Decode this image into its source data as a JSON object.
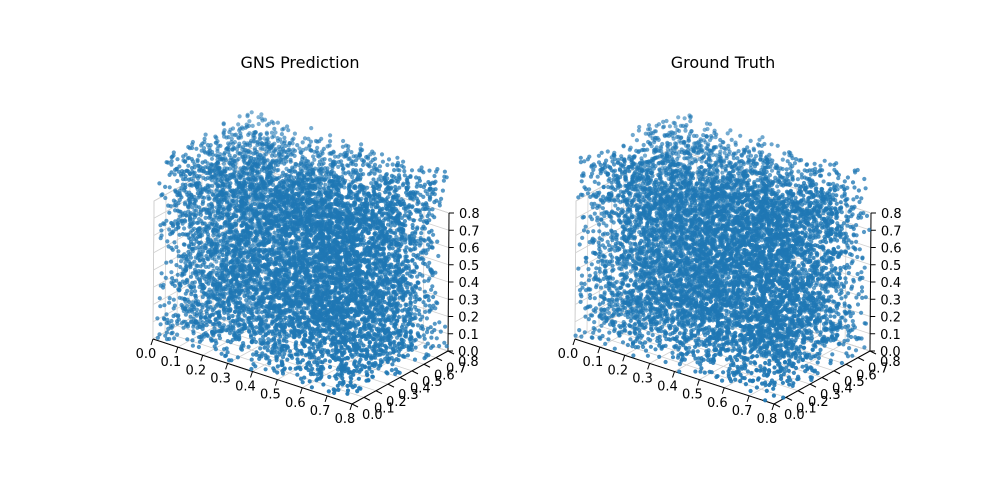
{
  "figure": {
    "background": "#ffffff",
    "point_color": "#1f77b4"
  },
  "chart_data": [
    {
      "type": "scatter",
      "subtype": "3d",
      "title": "GNS Prediction",
      "xlabel": "",
      "ylabel": "",
      "zlabel": "",
      "x_ticks": [
        "0.0",
        "0.1",
        "0.2",
        "0.3",
        "0.4",
        "0.5",
        "0.6",
        "0.7",
        "0.8"
      ],
      "y_ticks": [
        "0.0",
        "0.1",
        "0.2",
        "0.3",
        "0.4",
        "0.5",
        "0.6",
        "0.7",
        "0.8"
      ],
      "z_ticks": [
        "0.0",
        "0.1",
        "0.2",
        "0.3",
        "0.4",
        "0.5",
        "0.6",
        "0.7",
        "0.8"
      ],
      "xlim": [
        0,
        0.8
      ],
      "ylim": [
        0,
        0.8
      ],
      "zlim": [
        0,
        0.8
      ],
      "series": [
        {
          "distribution": "uniform",
          "x_range": [
            0,
            0.8
          ],
          "y_range": [
            0,
            0.8
          ],
          "z_range": [
            0,
            1.05
          ],
          "approx_points": 8000,
          "color": "#1f77b4",
          "seed": 11
        }
      ]
    },
    {
      "type": "scatter",
      "subtype": "3d",
      "title": "Ground Truth",
      "xlabel": "",
      "ylabel": "",
      "zlabel": "",
      "x_ticks": [
        "0.0",
        "0.1",
        "0.2",
        "0.3",
        "0.4",
        "0.5",
        "0.6",
        "0.7",
        "0.8"
      ],
      "y_ticks": [
        "0.0",
        "0.1",
        "0.2",
        "0.3",
        "0.4",
        "0.5",
        "0.6",
        "0.7",
        "0.8"
      ],
      "z_ticks": [
        "0.0",
        "0.1",
        "0.2",
        "0.3",
        "0.4",
        "0.5",
        "0.6",
        "0.7",
        "0.8"
      ],
      "xlim": [
        0,
        0.8
      ],
      "ylim": [
        0,
        0.8
      ],
      "zlim": [
        0,
        0.8
      ],
      "series": [
        {
          "distribution": "uniform",
          "x_range": [
            0,
            0.8
          ],
          "y_range": [
            0,
            0.8
          ],
          "z_range": [
            0,
            1.05
          ],
          "approx_points": 8000,
          "color": "#1f77b4",
          "seed": 29
        }
      ]
    }
  ]
}
